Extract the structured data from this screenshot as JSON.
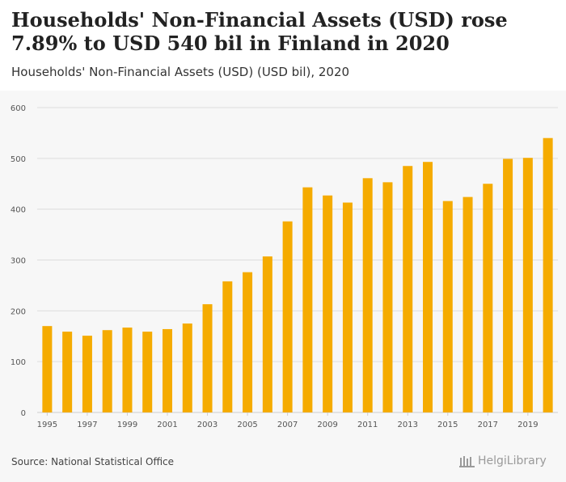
{
  "header": {
    "title": "Households' Non-Financial Assets (USD) rose 7.89% to USD 540 bil in Finland in 2020",
    "subtitle": "Households' Non-Financial Assets (USD) (USD bil), 2020"
  },
  "footer": {
    "source": "Source: National Statistical Office",
    "brand": "HelgiLibrary"
  },
  "colors": {
    "bar": "#f5ab00",
    "grid": "#dddddd",
    "background": "#f7f7f7"
  },
  "chart_data": {
    "type": "bar",
    "title": "Households' Non-Financial Assets (USD) (USD bil), 2020",
    "xlabel": "",
    "ylabel": "",
    "ylim": [
      0,
      600
    ],
    "yticks": [
      0,
      100,
      200,
      300,
      400,
      500,
      600
    ],
    "categories": [
      "1995",
      "1996",
      "1997",
      "1998",
      "1999",
      "2000",
      "2001",
      "2002",
      "2003",
      "2004",
      "2005",
      "2006",
      "2007",
      "2008",
      "2009",
      "2010",
      "2011",
      "2012",
      "2013",
      "2014",
      "2015",
      "2016",
      "2017",
      "2018",
      "2019",
      "2020"
    ],
    "xtick_labels": [
      "1995",
      "1997",
      "1999",
      "2001",
      "2003",
      "2005",
      "2007",
      "2009",
      "2011",
      "2013",
      "2015",
      "2017",
      "2019"
    ],
    "series": [
      {
        "name": "Households' Non-Financial Assets (USD)",
        "values": [
          170,
          159,
          151,
          162,
          167,
          159,
          164,
          175,
          213,
          258,
          276,
          307,
          376,
          443,
          427,
          413,
          461,
          453,
          485,
          493,
          416,
          424,
          450,
          499,
          501,
          540
        ]
      }
    ],
    "grid": true,
    "legend": "none"
  }
}
